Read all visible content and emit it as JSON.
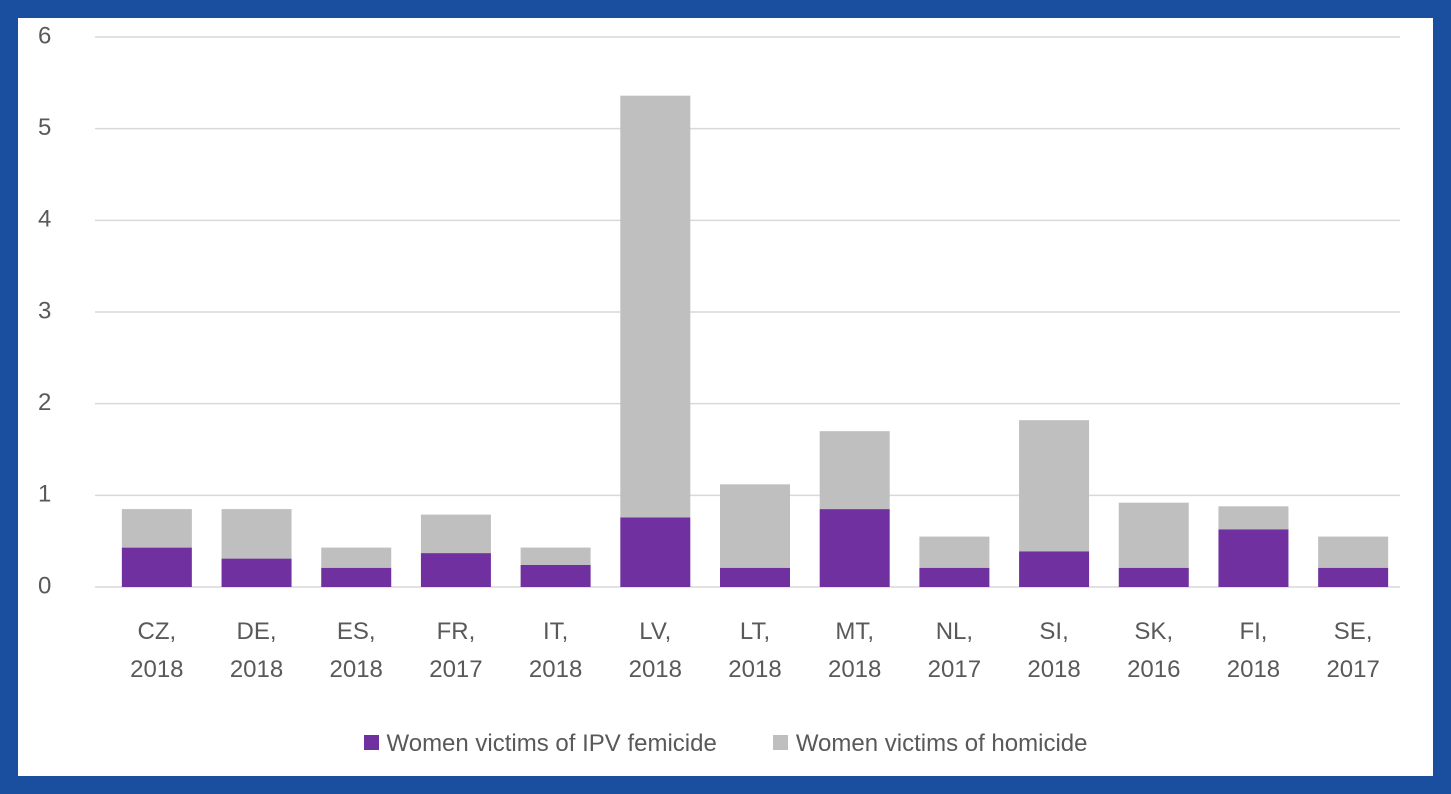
{
  "chart_data": {
    "type": "stacked_bar",
    "categories": [
      "CZ, 2018",
      "DE, 2018",
      "ES, 2018",
      "FR, 2017",
      "IT, 2018",
      "LV, 2018",
      "LT, 2018",
      "MT, 2018",
      "NL, 2017",
      "SI, 2018",
      "SK, 2016",
      "FI, 2018",
      "SE, 2017"
    ],
    "series": [
      {
        "name": "Women victims of IPV femicide",
        "color": "#7030a0",
        "values": [
          0.43,
          0.31,
          0.21,
          0.37,
          0.24,
          0.76,
          0.21,
          0.85,
          0.21,
          0.39,
          0.21,
          0.63,
          0.21
        ]
      },
      {
        "name": "Women victims of homicide",
        "color": "#bfbfbf",
        "values": [
          0.42,
          0.54,
          0.22,
          0.42,
          0.19,
          4.6,
          0.91,
          0.85,
          0.34,
          1.43,
          0.71,
          0.25,
          0.34
        ]
      }
    ],
    "ylim": [
      0,
      6
    ],
    "yticks": [
      0,
      1,
      2,
      3,
      4,
      5,
      6
    ],
    "grid": true,
    "legend": "bottom"
  }
}
